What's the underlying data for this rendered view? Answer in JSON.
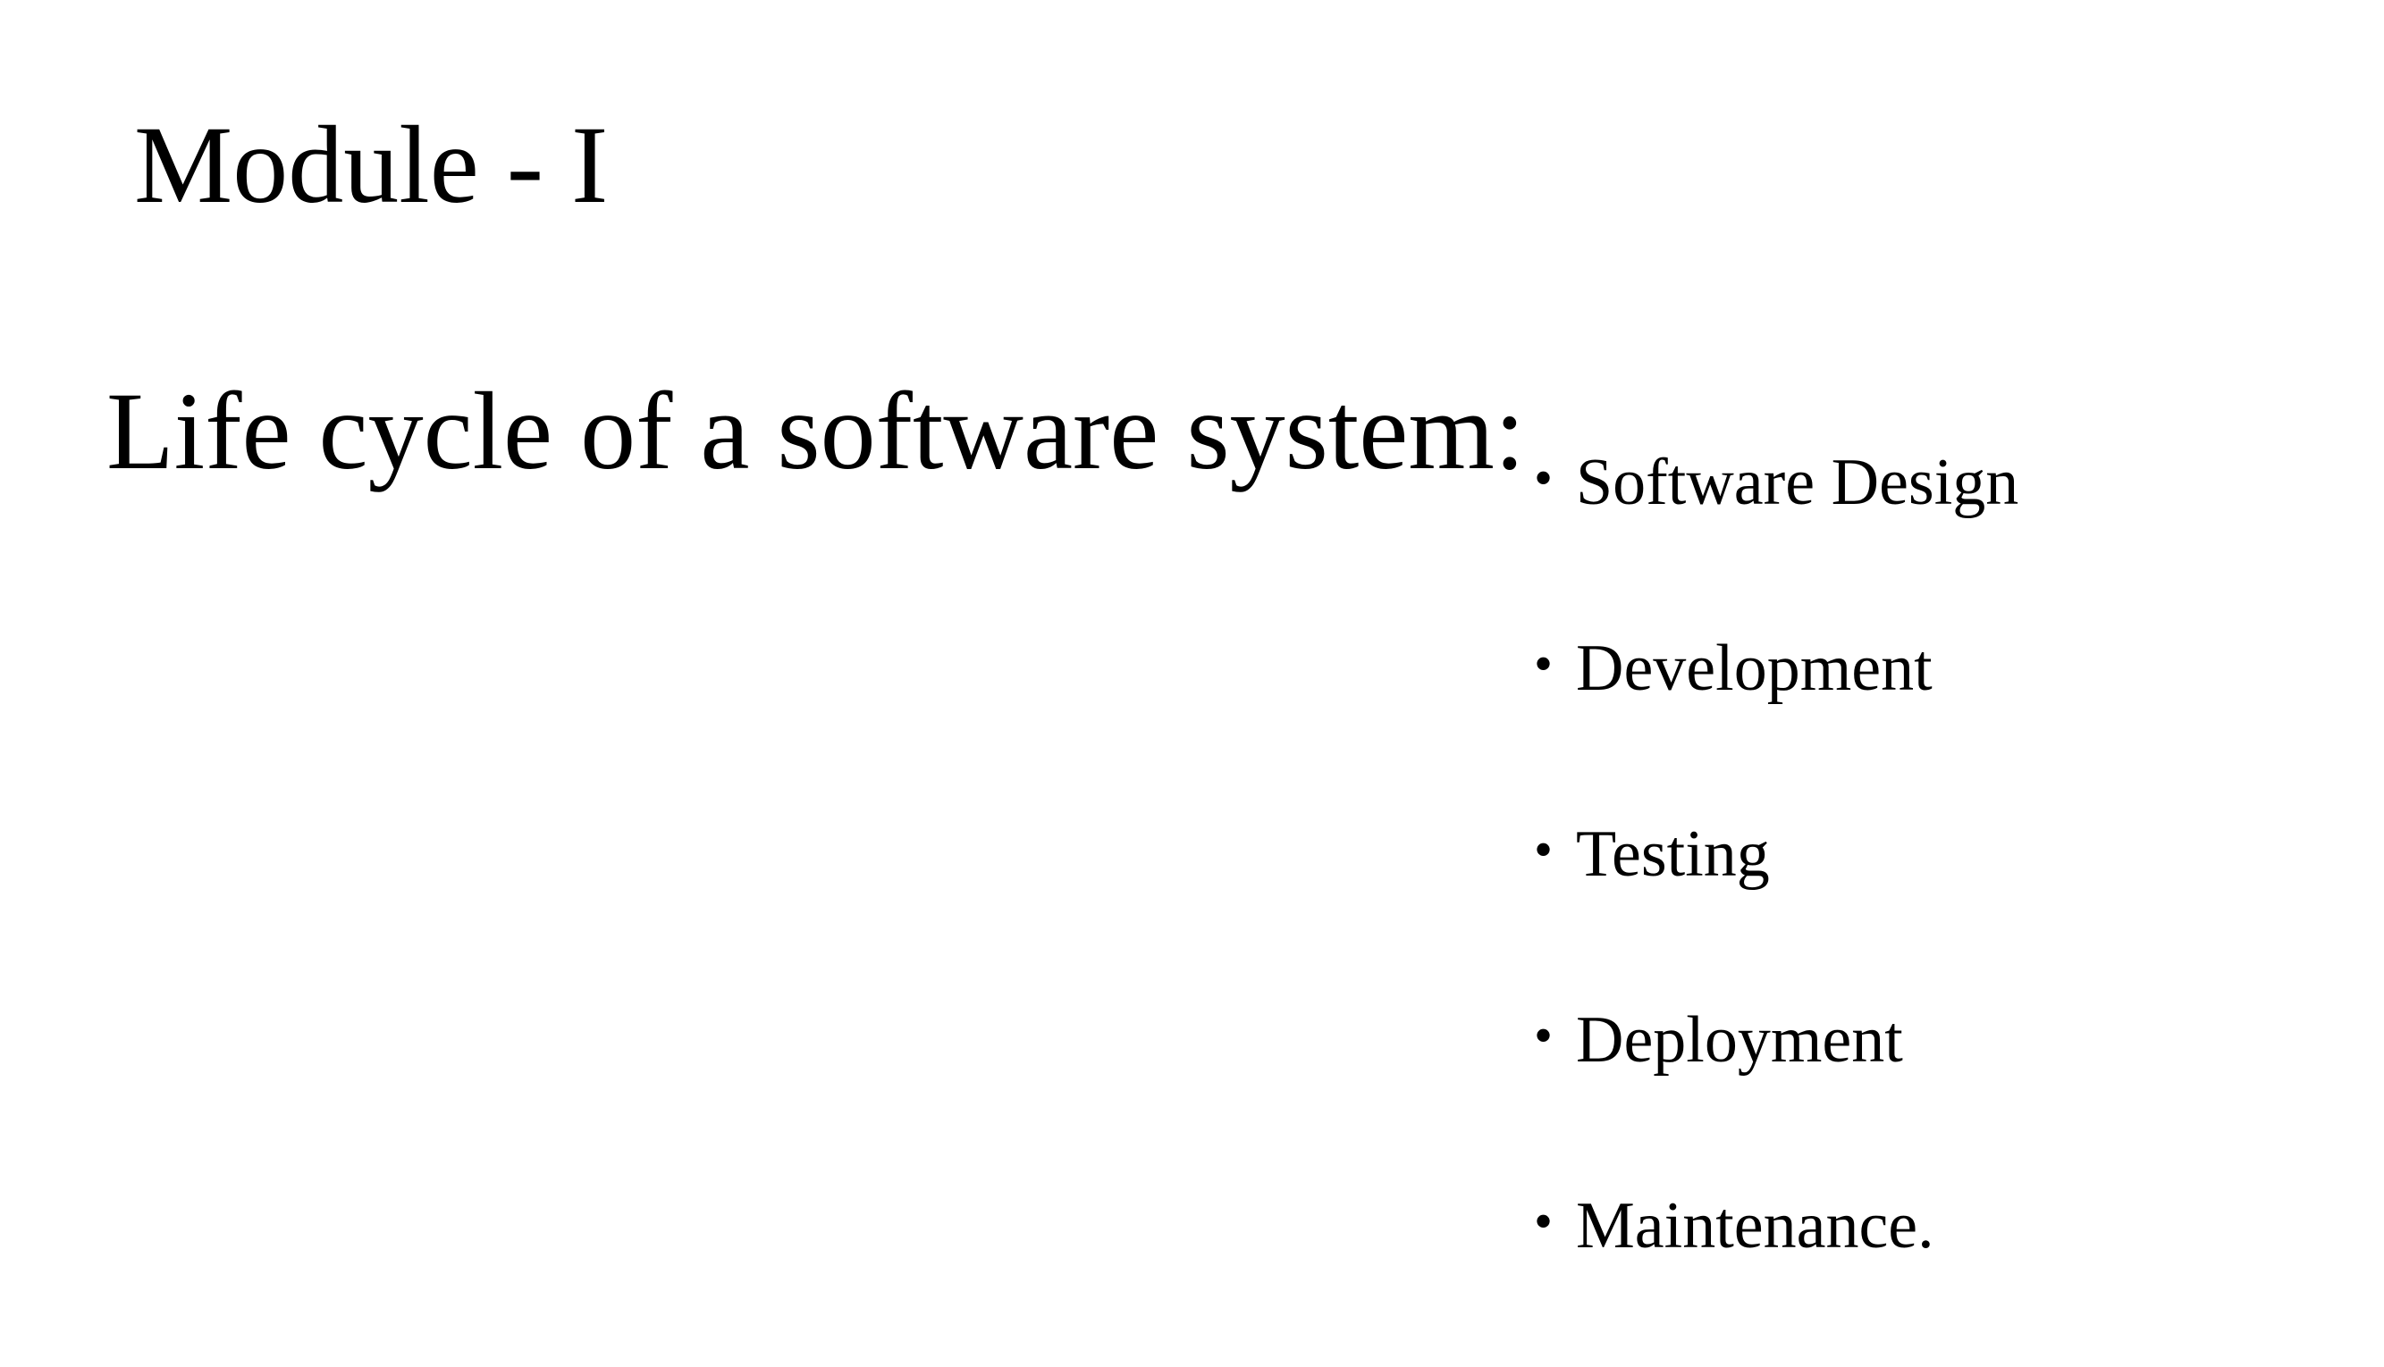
{
  "slide": {
    "title": "Module - I",
    "subtitle": "Life cycle of a software system:",
    "bullet_glyph": "•",
    "items": [
      {
        "label": "Software Design"
      },
      {
        "label": "Development"
      },
      {
        "label": "Testing"
      },
      {
        "label": "Deployment"
      },
      {
        "label": "Maintenance."
      }
    ]
  }
}
